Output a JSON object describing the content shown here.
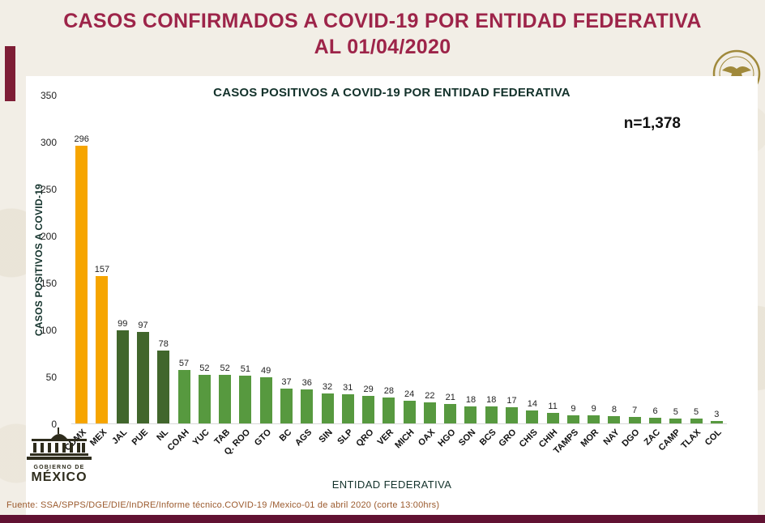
{
  "page": {
    "title_line1": "CASOS CONFIRMADOS A COVID-19 POR ENTIDAD FEDERATIVA",
    "title_line2": "AL 01/04/2020",
    "footer_source": "Fuente: SSA/SPPS/DGE/DIE/InDRE/Informe técnico.COVID-19 /Mexico-01 de abril 2020 (corte 13:00hrs)",
    "logo": {
      "line1": "GOBIERNO DE",
      "line2": "MÉXICO"
    },
    "colors": {
      "title": "#9D2449",
      "accent_rect": "#7E1D35",
      "bottom_bar": "#611232",
      "background": "#F2EEE6",
      "footer_text": "#9B5A2D",
      "seal_gold": "#A0893B"
    }
  },
  "chart_data": {
    "type": "bar",
    "title": "CASOS POSITIVOS A COVID-19 POR ENTIDAD FEDERATIVA",
    "annotation": "n=1,378",
    "xlabel": "ENTIDAD FEDERATIVA",
    "ylabel": "CASOS POSITIVOS A COVID-19",
    "ylim": [
      0,
      350
    ],
    "yticks": [
      0,
      50,
      100,
      150,
      200,
      250,
      300,
      350
    ],
    "grid": false,
    "legend": "none",
    "categories": [
      "CDMX",
      "MEX",
      "JAL",
      "PUE",
      "NL",
      "COAH",
      "YUC",
      "TAB",
      "Q. ROO",
      "GTO",
      "BC",
      "AGS",
      "SIN",
      "SLP",
      "QRO",
      "VER",
      "MICH",
      "OAX",
      "HGO",
      "SON",
      "BCS",
      "GRO",
      "CHIS",
      "CHIH",
      "TAMPS",
      "MOR",
      "NAY",
      "DGO",
      "ZAC",
      "CAMP",
      "TLAX",
      "COL"
    ],
    "values": [
      296,
      157,
      99,
      97,
      78,
      57,
      52,
      52,
      51,
      49,
      37,
      36,
      32,
      31,
      29,
      28,
      24,
      22,
      21,
      18,
      18,
      17,
      14,
      11,
      9,
      9,
      8,
      7,
      6,
      5,
      5,
      3
    ],
    "colors": {
      "highlight": "#F6A500",
      "dark": "#41662C",
      "normal": "#57993F"
    },
    "bar_color_keys": [
      "highlight",
      "highlight",
      "dark",
      "dark",
      "dark",
      "normal",
      "normal",
      "normal",
      "normal",
      "normal",
      "normal",
      "normal",
      "normal",
      "normal",
      "normal",
      "normal",
      "normal",
      "normal",
      "normal",
      "normal",
      "normal",
      "normal",
      "normal",
      "normal",
      "normal",
      "normal",
      "normal",
      "normal",
      "normal",
      "normal",
      "normal",
      "normal"
    ]
  }
}
